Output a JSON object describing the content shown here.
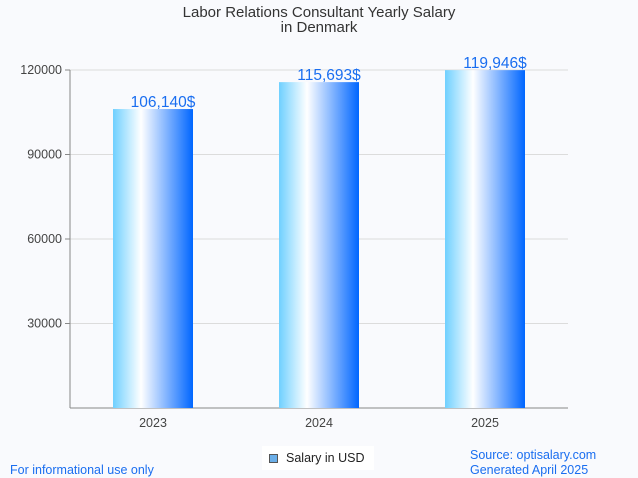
{
  "chart_data": {
    "type": "bar",
    "title": [
      "Labor Relations Consultant Yearly Salary",
      "in Denmark"
    ],
    "categories": [
      "2023",
      "2024",
      "2025"
    ],
    "values": [
      106140,
      115693,
      119946
    ],
    "data_labels": [
      "106,140$",
      "115,693$",
      "119,946$"
    ],
    "yticks": [
      30000,
      60000,
      90000,
      120000
    ],
    "ylim": [
      0,
      120000
    ],
    "grid": true,
    "legend": {
      "label": "Salary in USD",
      "placement": "bottom-center",
      "color": "#6aaee8"
    },
    "label_color": "#1a6ef0"
  },
  "footer": {
    "left": "For informational use only",
    "source": "Source: optisalary.com",
    "generated": "Generated April 2025"
  }
}
